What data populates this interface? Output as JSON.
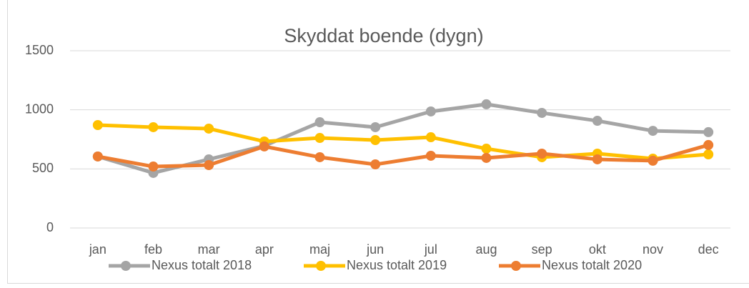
{
  "chart_data": {
    "type": "line",
    "title": "Skyddat boende (dygn)",
    "categories": [
      "jan",
      "feb",
      "mar",
      "apr",
      "maj",
      "jun",
      "jul",
      "aug",
      "sep",
      "okt",
      "nov",
      "dec"
    ],
    "series": [
      {
        "name": "Nexus totalt 2018",
        "color": "#a5a5a5",
        "values": [
          605,
          466,
          581,
          695,
          895,
          853,
          986,
          1047,
          974,
          907,
          822,
          811
        ]
      },
      {
        "name": "Nexus totalt 2019",
        "color": "#ffc000",
        "values": [
          871,
          853,
          841,
          732,
          762,
          744,
          768,
          671,
          599,
          629,
          587,
          623
        ]
      },
      {
        "name": "Nexus totalt 2020",
        "color": "#ed7d31",
        "values": [
          605,
          520,
          532,
          690,
          599,
          538,
          611,
          593,
          629,
          581,
          569,
          702
        ]
      }
    ],
    "ylim": [
      0,
      1500
    ],
    "yticks": [
      0,
      500,
      1000,
      1500
    ],
    "grid": true,
    "legend": "bottom"
  }
}
